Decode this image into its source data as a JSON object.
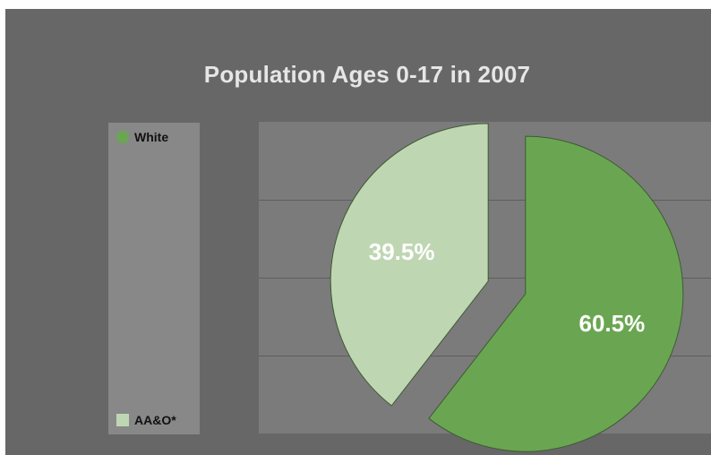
{
  "chart_data": {
    "type": "pie",
    "title": "Population Ages 0-17 in 2007",
    "categories": [
      "White",
      "AA&O*"
    ],
    "values": [
      60.5,
      39.5
    ],
    "data_labels": [
      "60.5%",
      "39.5%"
    ],
    "colors": [
      "#6aa651",
      "#bfd6b3"
    ],
    "legend_position": "left",
    "exploded": true
  },
  "legend": {
    "items": [
      {
        "label": "White",
        "color": "#6aa651"
      },
      {
        "label": "AA&O*",
        "color": "#bfd6b3"
      }
    ]
  },
  "colors": {
    "background": "#676767",
    "plot_area": "#7b7b7b",
    "legend_panel": "#888888",
    "title_text": "#e6e6e6"
  }
}
